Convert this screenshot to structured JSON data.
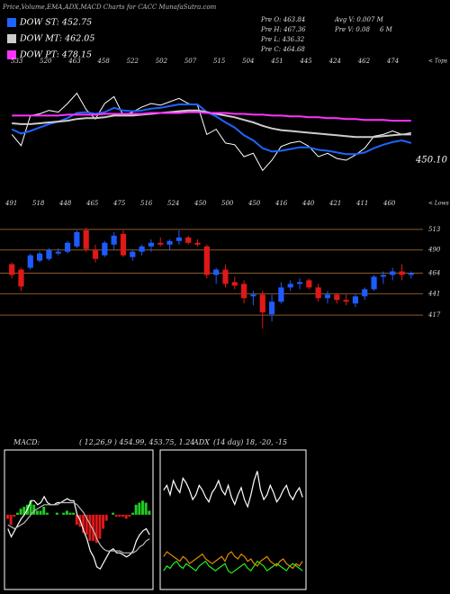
{
  "chart_data": [
    {
      "type": "line",
      "title": "Price,Volume,EMA,ADX,MACD Charts for CACC MunafaSutra.com",
      "annotations": [
        "Pre O: 463.84",
        "Pre H: 467.36",
        "Pre L: 436.32",
        "Pre C: 464.68",
        "Avg V: 0.007 M",
        "Pre V: 0.08",
        "6 M",
        "450.10"
      ],
      "tops": [
        "533",
        "520",
        "463",
        "458",
        "522",
        "502",
        "507",
        "515",
        "504",
        "451",
        "445",
        "424",
        "462",
        "474"
      ],
      "tops_label": "< Tops",
      "lows": [
        "491",
        "518",
        "448",
        "465",
        "475",
        "516",
        "524",
        "450",
        "500",
        "450",
        "416",
        "440",
        "421",
        "411",
        "460"
      ],
      "lows_label": "< Lows",
      "ylim": [
        390,
        540
      ],
      "price_color": "#ffffff",
      "series": [
        {
          "name": "DOW ST: 452.75",
          "color": "#1e64ff",
          "values": [
            468,
            463,
            466,
            470,
            474,
            477,
            481,
            487,
            488,
            486,
            488,
            493,
            490,
            489,
            490,
            492,
            493,
            495,
            497,
            497,
            497,
            488,
            483,
            476,
            470,
            461,
            455,
            446,
            442,
            443,
            445,
            447,
            447,
            444,
            443,
            441,
            439,
            439,
            441,
            446,
            450,
            453,
            455,
            452
          ]
        },
        {
          "name": "DOW MT: 462.05",
          "color": "#cccccc",
          "values": [
            475,
            474,
            474,
            475,
            476,
            477,
            478,
            480,
            481,
            481,
            482,
            484,
            484,
            484,
            485,
            486,
            487,
            488,
            489,
            490,
            490,
            488,
            486,
            484,
            482,
            479,
            476,
            472,
            469,
            467,
            466,
            465,
            464,
            463,
            462,
            461,
            460,
            459,
            459,
            459,
            460,
            461,
            462,
            462
          ]
        },
        {
          "name": "DOW PT: 478.15",
          "color": "#ff33ff",
          "values": [
            484,
            484,
            484,
            484,
            484,
            484,
            485,
            485,
            485,
            485,
            486,
            486,
            486,
            486,
            486,
            487,
            487,
            487,
            487,
            488,
            488,
            487,
            487,
            487,
            486,
            486,
            485,
            485,
            484,
            484,
            483,
            483,
            482,
            482,
            481,
            481,
            480,
            480,
            479,
            479,
            479,
            478,
            478,
            478
          ]
        }
      ]
    },
    {
      "type": "candlestick",
      "open": [
        474,
        468,
        470,
        478,
        480,
        486,
        488,
        494,
        512,
        490,
        484,
        496,
        508,
        482,
        488,
        494,
        498,
        496,
        500,
        504,
        498,
        494,
        462,
        468,
        454,
        452,
        438,
        440,
        418,
        432,
        448,
        452,
        456,
        448,
        436,
        440,
        434,
        430,
        438,
        446,
        460,
        462,
        466,
        462
      ],
      "high": [
        476,
        470,
        486,
        488,
        492,
        492,
        500,
        512,
        515,
        496,
        500,
        510,
        512,
        490,
        496,
        502,
        504,
        502,
        512,
        506,
        502,
        496,
        470,
        474,
        460,
        456,
        444,
        444,
        440,
        454,
        456,
        458,
        458,
        452,
        444,
        442,
        440,
        440,
        448,
        462,
        466,
        470,
        474,
        466
      ],
      "low": [
        458,
        444,
        468,
        476,
        478,
        484,
        486,
        492,
        488,
        476,
        482,
        490,
        482,
        478,
        484,
        488,
        494,
        490,
        496,
        496,
        494,
        458,
        452,
        448,
        446,
        430,
        428,
        402,
        410,
        430,
        444,
        446,
        446,
        432,
        430,
        430,
        428,
        426,
        434,
        444,
        452,
        456,
        456,
        458
      ],
      "close": [
        462,
        449,
        484,
        486,
        490,
        488,
        498,
        510,
        491,
        480,
        498,
        506,
        484,
        488,
        494,
        498,
        496,
        500,
        504,
        498,
        496,
        462,
        468,
        452,
        450,
        436,
        440,
        420,
        432,
        448,
        452,
        454,
        448,
        436,
        440,
        434,
        432,
        438,
        446,
        460,
        462,
        466,
        462,
        464
      ],
      "ylim": [
        402,
        523
      ],
      "yticks": [
        513,
        490,
        464,
        441,
        417
      ],
      "up_color": "#1e5bff",
      "down_color": "#e01818",
      "grid_color": "#8b5a2b"
    },
    {
      "type": "macd",
      "title": "MACD:",
      "subtitle": "( 12,26,9 ) 454.99, 453.75, 1.24",
      "ylim": [
        -35,
        30
      ],
      "up_color": "#22cc22",
      "down_color": "#e01818",
      "histogram": [
        -2,
        -5,
        -1,
        1,
        3,
        4,
        5,
        7,
        5,
        2,
        2,
        4,
        1,
        0,
        0,
        1,
        0,
        1,
        2,
        1,
        1,
        -5,
        -6,
        -9,
        -10,
        -13,
        -13,
        -14,
        -12,
        -7,
        -3,
        0,
        1,
        -1,
        -1,
        -1,
        -2,
        -1,
        1,
        5,
        6,
        7,
        6,
        2
      ],
      "series": [
        {
          "color": "#ffffff",
          "values": [
            -7,
            -11,
            -8,
            -5,
            -2,
            0,
            3,
            7,
            7,
            5,
            6,
            9,
            6,
            5,
            5,
            6,
            6,
            7,
            8,
            7,
            7,
            0,
            -3,
            -8,
            -12,
            -18,
            -21,
            -26,
            -27,
            -24,
            -21,
            -18,
            -17,
            -19,
            -19,
            -20,
            -21,
            -20,
            -18,
            -13,
            -10,
            -8,
            -7,
            -10
          ]
        },
        {
          "color": "#bbbbbb",
          "values": [
            -5,
            -6,
            -7,
            -6,
            -5,
            -4,
            -2,
            0,
            2,
            3,
            4,
            5,
            5,
            5,
            5,
            5,
            6,
            6,
            6,
            6,
            6,
            5,
            3,
            1,
            -2,
            -5,
            -8,
            -12,
            -15,
            -17,
            -18,
            -18,
            -18,
            -18,
            -18,
            -19,
            -19,
            -19,
            -19,
            -18,
            -16,
            -15,
            -13,
            -12
          ]
        }
      ]
    },
    {
      "type": "line",
      "title": "ADX",
      "subtitle": "(14 day) 18, -20, -15",
      "ylim": [
        0,
        55
      ],
      "series": [
        {
          "color": "#ffffff",
          "values": [
            40,
            42,
            38,
            44,
            41,
            39,
            45,
            43,
            40,
            36,
            38,
            42,
            40,
            37,
            35,
            39,
            41,
            44,
            40,
            38,
            42,
            37,
            34,
            38,
            41,
            36,
            33,
            38,
            44,
            48,
            40,
            36,
            38,
            42,
            39,
            35,
            37,
            40,
            42,
            38,
            36,
            39,
            41,
            37
          ]
        },
        {
          "color": "#22ee22",
          "values": [
            6,
            8,
            7,
            9,
            10,
            8,
            7,
            9,
            8,
            7,
            6,
            8,
            9,
            10,
            8,
            7,
            6,
            7,
            8,
            9,
            6,
            5,
            6,
            7,
            8,
            9,
            7,
            6,
            8,
            10,
            9,
            8,
            6,
            7,
            8,
            9,
            8,
            7,
            6,
            8,
            9,
            8,
            7,
            6
          ]
        },
        {
          "color": "#e08a00",
          "values": [
            12,
            14,
            13,
            12,
            11,
            10,
            12,
            11,
            9,
            10,
            11,
            12,
            13,
            11,
            10,
            9,
            10,
            11,
            12,
            10,
            13,
            14,
            12,
            11,
            13,
            12,
            10,
            11,
            9,
            8,
            10,
            11,
            12,
            10,
            9,
            8,
            10,
            11,
            9,
            8,
            7,
            9,
            8,
            10
          ]
        }
      ]
    }
  ]
}
